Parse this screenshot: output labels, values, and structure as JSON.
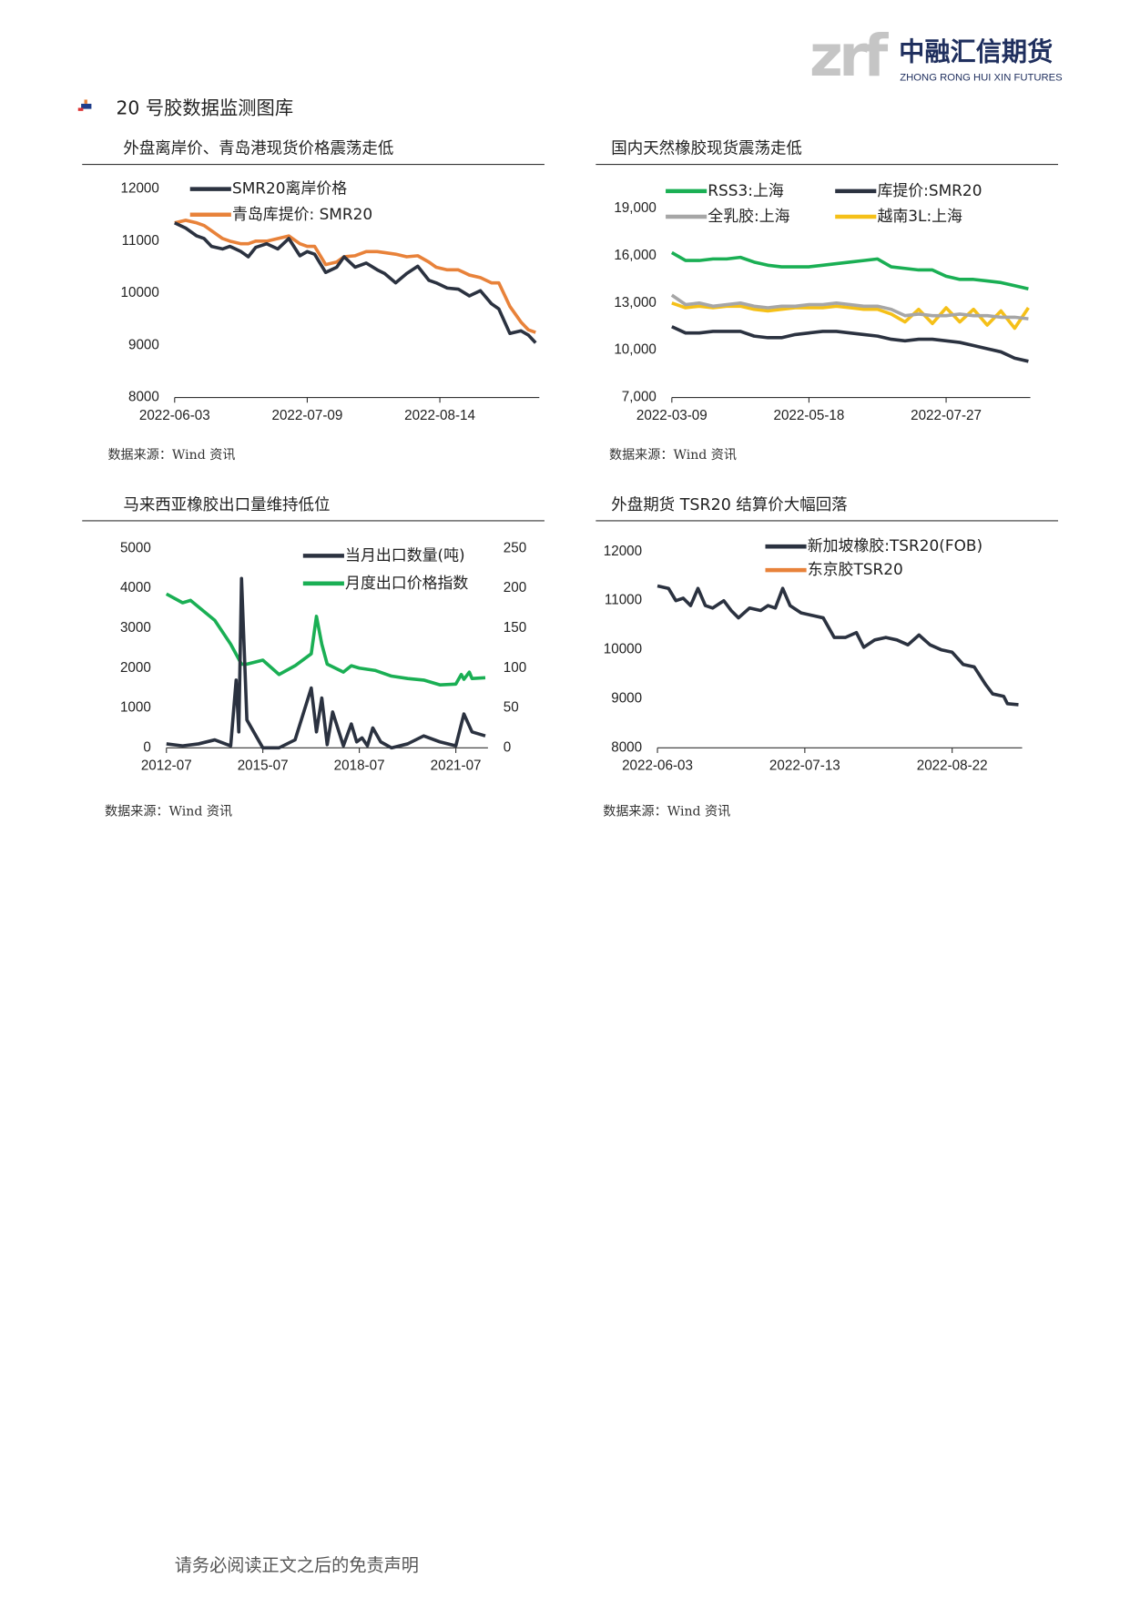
{
  "header": {
    "logo_mark": "zrf",
    "company": "中融汇信期货",
    "company_en": "ZHONG RONG HUI XIN FUTURES"
  },
  "section_title": "20 号胶数据监测图库",
  "footer": "请务必阅读正文之后的免责声明",
  "chart_data": [
    {
      "type": "line",
      "title": "外盘离岸价、青岛港现货价格震荡走低",
      "source": "数据来源：Wind 资讯",
      "x": [
        "2022-06-03",
        "2022-06-06",
        "2022-06-09",
        "2022-06-11",
        "2022-06-13",
        "2022-06-16",
        "2022-06-18",
        "2022-06-21",
        "2022-06-23",
        "2022-06-25",
        "2022-06-28",
        "2022-07-01",
        "2022-07-04",
        "2022-07-07",
        "2022-07-09",
        "2022-07-11",
        "2022-07-14",
        "2022-07-17",
        "2022-07-19",
        "2022-07-22",
        "2022-07-25",
        "2022-07-28",
        "2022-07-30",
        "2022-08-02",
        "2022-08-05",
        "2022-08-08",
        "2022-08-11",
        "2022-08-13",
        "2022-08-16",
        "2022-08-19",
        "2022-08-22",
        "2022-08-25",
        "2022-08-28",
        "2022-08-30",
        "2022-09-02",
        "2022-09-05",
        "2022-09-07",
        "2022-09-09"
      ],
      "xlim": [
        "2022-06-03",
        "2022-09-10"
      ],
      "xticks": [
        "2022-06-03",
        "2022-07-09",
        "2022-08-14"
      ],
      "ylim": [
        8000,
        12000
      ],
      "yticks": [
        8000,
        9000,
        10000,
        11000,
        12000
      ],
      "series": [
        {
          "name": "SMR20离岸价格",
          "color": "#2b3240",
          "values": [
            11350,
            11250,
            11100,
            11050,
            10900,
            10850,
            10900,
            10800,
            10700,
            10880,
            10950,
            10850,
            11050,
            10720,
            10800,
            10750,
            10400,
            10500,
            10700,
            10500,
            10580,
            10450,
            10380,
            10200,
            10380,
            10520,
            10250,
            10200,
            10100,
            10080,
            9950,
            10050,
            9800,
            9700,
            9230,
            9280,
            9200,
            9050
          ]
        },
        {
          "name": "青岛库提价: SMR20",
          "color": "#e8823a",
          "values": [
            11350,
            11400,
            11350,
            11300,
            11200,
            11050,
            11000,
            10950,
            10950,
            11000,
            11000,
            11050,
            11100,
            10950,
            10900,
            10900,
            10550,
            10600,
            10700,
            10720,
            10800,
            10800,
            10780,
            10750,
            10700,
            10720,
            10600,
            10500,
            10450,
            10450,
            10350,
            10300,
            10200,
            10200,
            9750,
            9450,
            9300,
            9250
          ]
        }
      ]
    },
    {
      "type": "line",
      "title": "国内天然橡胶现货震荡走低",
      "source": "数据来源：Wind 资讯",
      "x": [
        "2022-03-09",
        "2022-03-16",
        "2022-03-23",
        "2022-03-30",
        "2022-04-06",
        "2022-04-13",
        "2022-04-20",
        "2022-04-27",
        "2022-05-04",
        "2022-05-11",
        "2022-05-18",
        "2022-05-25",
        "2022-06-01",
        "2022-06-08",
        "2022-06-15",
        "2022-06-22",
        "2022-06-29",
        "2022-07-06",
        "2022-07-13",
        "2022-07-20",
        "2022-07-27",
        "2022-08-03",
        "2022-08-10",
        "2022-08-17",
        "2022-08-24",
        "2022-08-31",
        "2022-09-07"
      ],
      "xlim": [
        "2022-03-09",
        "2022-09-08"
      ],
      "xticks": [
        "2022-03-09",
        "2022-05-18",
        "2022-07-27"
      ],
      "ylim": [
        7000,
        19000
      ],
      "yticks": [
        {
          "value": 7000,
          "label": "7,000"
        },
        {
          "value": 10000,
          "label": "10,000"
        },
        {
          "value": 13000,
          "label": "13,000"
        },
        {
          "value": 16000,
          "label": "16,000"
        },
        {
          "value": 19000,
          "label": "19,000"
        }
      ],
      "series": [
        {
          "name": "RSS3:上海",
          "color": "#1aaf54",
          "values": [
            16200,
            15700,
            15700,
            15800,
            15800,
            15900,
            15600,
            15400,
            15300,
            15300,
            15300,
            15400,
            15500,
            15600,
            15700,
            15800,
            15300,
            15200,
            15100,
            15100,
            14700,
            14500,
            14500,
            14400,
            14300,
            14100,
            13900
          ]
        },
        {
          "name": "库提价:SMR20",
          "color": "#2b3240",
          "values": [
            11500,
            11100,
            11100,
            11200,
            11200,
            11200,
            10900,
            10800,
            10800,
            11000,
            11100,
            11200,
            11200,
            11100,
            11000,
            10900,
            10700,
            10600,
            10700,
            10700,
            10600,
            10500,
            10300,
            10100,
            9900,
            9500,
            9300
          ]
        },
        {
          "name": "全乳胶:上海",
          "color": "#a6a6a6",
          "values": [
            13500,
            12900,
            13000,
            12800,
            12900,
            13000,
            12800,
            12700,
            12800,
            12800,
            12900,
            12900,
            13000,
            12900,
            12800,
            12800,
            12600,
            12200,
            12300,
            12200,
            12200,
            12300,
            12200,
            12200,
            12100,
            12100,
            12000
          ]
        },
        {
          "name": "越南3L:上海",
          "color": "#f5c018",
          "values": [
            13000,
            12700,
            12800,
            12700,
            12800,
            12800,
            12600,
            12500,
            12600,
            12700,
            12700,
            12700,
            12800,
            12700,
            12600,
            12600,
            12300,
            11800,
            12600,
            11700,
            12700,
            11800,
            12600,
            11600,
            12500,
            11400,
            12700
          ]
        }
      ]
    },
    {
      "type": "line",
      "title": "马来西亚橡胶出口量维持低位",
      "source": "数据来源：Wind 资讯",
      "xlim": [
        "2012-07",
        "2022-07"
      ],
      "xticks": [
        "2012-07",
        "2015-07",
        "2018-07",
        "2021-07"
      ],
      "ylim": [
        0,
        5000
      ],
      "yticks": [
        0,
        1000,
        2000,
        3000,
        4000,
        5000
      ],
      "y2lim": [
        0,
        250
      ],
      "y2ticks": [
        0,
        50,
        100,
        150,
        200,
        250
      ],
      "series": [
        {
          "name": "当月出口数量(吨)",
          "color": "#2b3240",
          "x": [
            "2012-07",
            "2013-01",
            "2013-07",
            "2014-01",
            "2014-07",
            "2014-09",
            "2014-10",
            "2014-11",
            "2015-01",
            "2015-07",
            "2016-01",
            "2016-07",
            "2017-01",
            "2017-03",
            "2017-05",
            "2017-07",
            "2017-09",
            "2018-01",
            "2018-04",
            "2018-06",
            "2018-08",
            "2018-10",
            "2018-12",
            "2019-03",
            "2019-07",
            "2020-01",
            "2020-07",
            "2021-01",
            "2021-07",
            "2021-10",
            "2022-01",
            "2022-06"
          ],
          "values": [
            100,
            50,
            100,
            200,
            50,
            1700,
            400,
            4250,
            700,
            0,
            0,
            200,
            1500,
            400,
            1250,
            80,
            900,
            50,
            600,
            150,
            250,
            50,
            500,
            150,
            0,
            100,
            300,
            150,
            50,
            850,
            400,
            300
          ]
        },
        {
          "name": "月度出口价格指数",
          "color": "#1aaf54",
          "axis": "y2",
          "x": [
            "2012-07",
            "2013-01",
            "2013-04",
            "2014-01",
            "2014-07",
            "2014-11",
            "2015-01",
            "2015-07",
            "2016-01",
            "2016-07",
            "2017-01",
            "2017-03",
            "2017-05",
            "2017-07",
            "2018-01",
            "2018-04",
            "2018-07",
            "2019-01",
            "2019-07",
            "2020-01",
            "2020-07",
            "2021-01",
            "2021-07",
            "2021-09",
            "2021-10",
            "2021-12",
            "2022-01",
            "2022-06"
          ],
          "values": [
            193,
            182,
            185,
            160,
            130,
            105,
            105,
            110,
            92,
            103,
            118,
            165,
            130,
            105,
            95,
            103,
            100,
            97,
            90,
            87,
            85,
            79,
            80,
            92,
            86,
            95,
            87,
            88
          ]
        }
      ]
    },
    {
      "type": "line",
      "title": "外盘期货 TSR20 结算价大幅回落",
      "source": "数据来源：Wind 资讯",
      "x": [
        "2022-06-03",
        "2022-06-06",
        "2022-06-08",
        "2022-06-10",
        "2022-06-12",
        "2022-06-14",
        "2022-06-16",
        "2022-06-18",
        "2022-06-21",
        "2022-06-23",
        "2022-06-25",
        "2022-06-28",
        "2022-07-01",
        "2022-07-03",
        "2022-07-05",
        "2022-07-07",
        "2022-07-09",
        "2022-07-12",
        "2022-07-15",
        "2022-07-18",
        "2022-07-21",
        "2022-07-24",
        "2022-07-27",
        "2022-07-29",
        "2022-08-01",
        "2022-08-04",
        "2022-08-07",
        "2022-08-10",
        "2022-08-13",
        "2022-08-16",
        "2022-08-19",
        "2022-08-22",
        "2022-08-25",
        "2022-08-28",
        "2022-08-31",
        "2022-09-02",
        "2022-09-05",
        "2022-09-06",
        "2022-09-09"
      ],
      "xlim": [
        "2022-06-03",
        "2022-09-10"
      ],
      "xticks": [
        "2022-06-03",
        "2022-07-13",
        "2022-08-22"
      ],
      "ylim": [
        8000,
        12000
      ],
      "yticks": [
        8000,
        9000,
        10000,
        11000,
        12000
      ],
      "series": [
        {
          "name": "新加坡橡胶:TSR20(FOB)",
          "color": "#2b3240",
          "values": [
            11300,
            11250,
            11000,
            11050,
            10900,
            11250,
            10900,
            10850,
            11000,
            10800,
            10650,
            10850,
            10800,
            10900,
            10850,
            11250,
            10900,
            10750,
            10700,
            10650,
            10250,
            10250,
            10350,
            10050,
            10200,
            10250,
            10200,
            10100,
            10300,
            10100,
            10000,
            9950,
            9700,
            9650,
            9300,
            9100,
            9050,
            8900,
            8880
          ]
        },
        {
          "name": "东京胶TSR20",
          "color": "#e8823a",
          "values": [
            null,
            null,
            null,
            null,
            null,
            null,
            null,
            null,
            null,
            null,
            null,
            null,
            null,
            null,
            null,
            null,
            null,
            null,
            null,
            null,
            null,
            null,
            null,
            null,
            null,
            null,
            null,
            null,
            null,
            null,
            null,
            null,
            null,
            null,
            null,
            null,
            null,
            null,
            null
          ]
        }
      ]
    }
  ]
}
